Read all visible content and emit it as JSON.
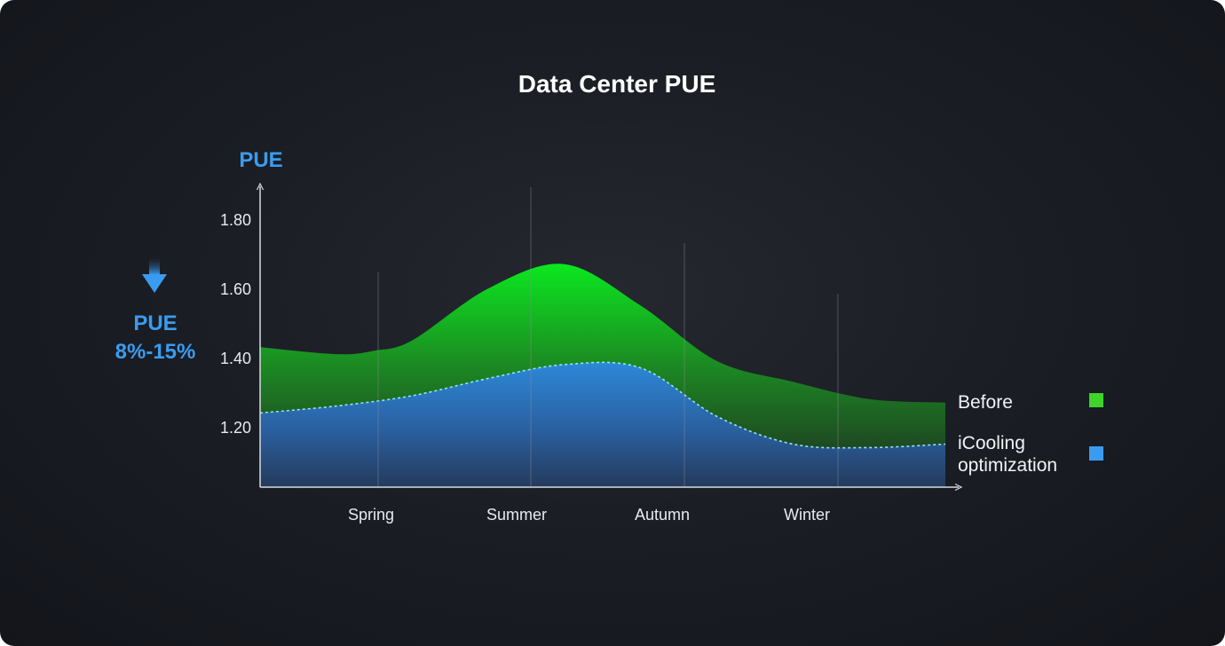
{
  "chart_data": {
    "type": "area",
    "title": "Data Center PUE",
    "ylabel": "PUE",
    "xlabel": "",
    "ylim": [
      1.03,
      1.88
    ],
    "yticks": [
      "1.80",
      "1.60",
      "1.40",
      "1.20"
    ],
    "ytick_values": [
      1.8,
      1.6,
      1.4,
      1.2
    ],
    "categories": [
      "Spring",
      "Summer",
      "Autumn",
      "Winter"
    ],
    "x_range": [
      0,
      4.5
    ],
    "series": [
      {
        "name": "Before",
        "color": "#3fd42a",
        "x": [
          0,
          0.5,
          0.75,
          1.0,
          1.5,
          2.0,
          2.5,
          3.0,
          3.5,
          4.0,
          4.5
        ],
        "values": [
          1.43,
          1.41,
          1.42,
          1.45,
          1.6,
          1.67,
          1.55,
          1.39,
          1.33,
          1.28,
          1.27
        ]
      },
      {
        "name": "iCooling optimization",
        "color": "#3a9cf0",
        "x": [
          0,
          0.5,
          1.0,
          1.5,
          2.0,
          2.5,
          3.0,
          3.5,
          4.0,
          4.5
        ],
        "values": [
          1.24,
          1.26,
          1.29,
          1.34,
          1.38,
          1.37,
          1.23,
          1.15,
          1.14,
          1.15
        ]
      }
    ],
    "grid": false,
    "legend_position": "right",
    "annotation": {
      "icon": "arrow-down-icon",
      "line1": "PUE",
      "line2": "8%-15%"
    }
  }
}
